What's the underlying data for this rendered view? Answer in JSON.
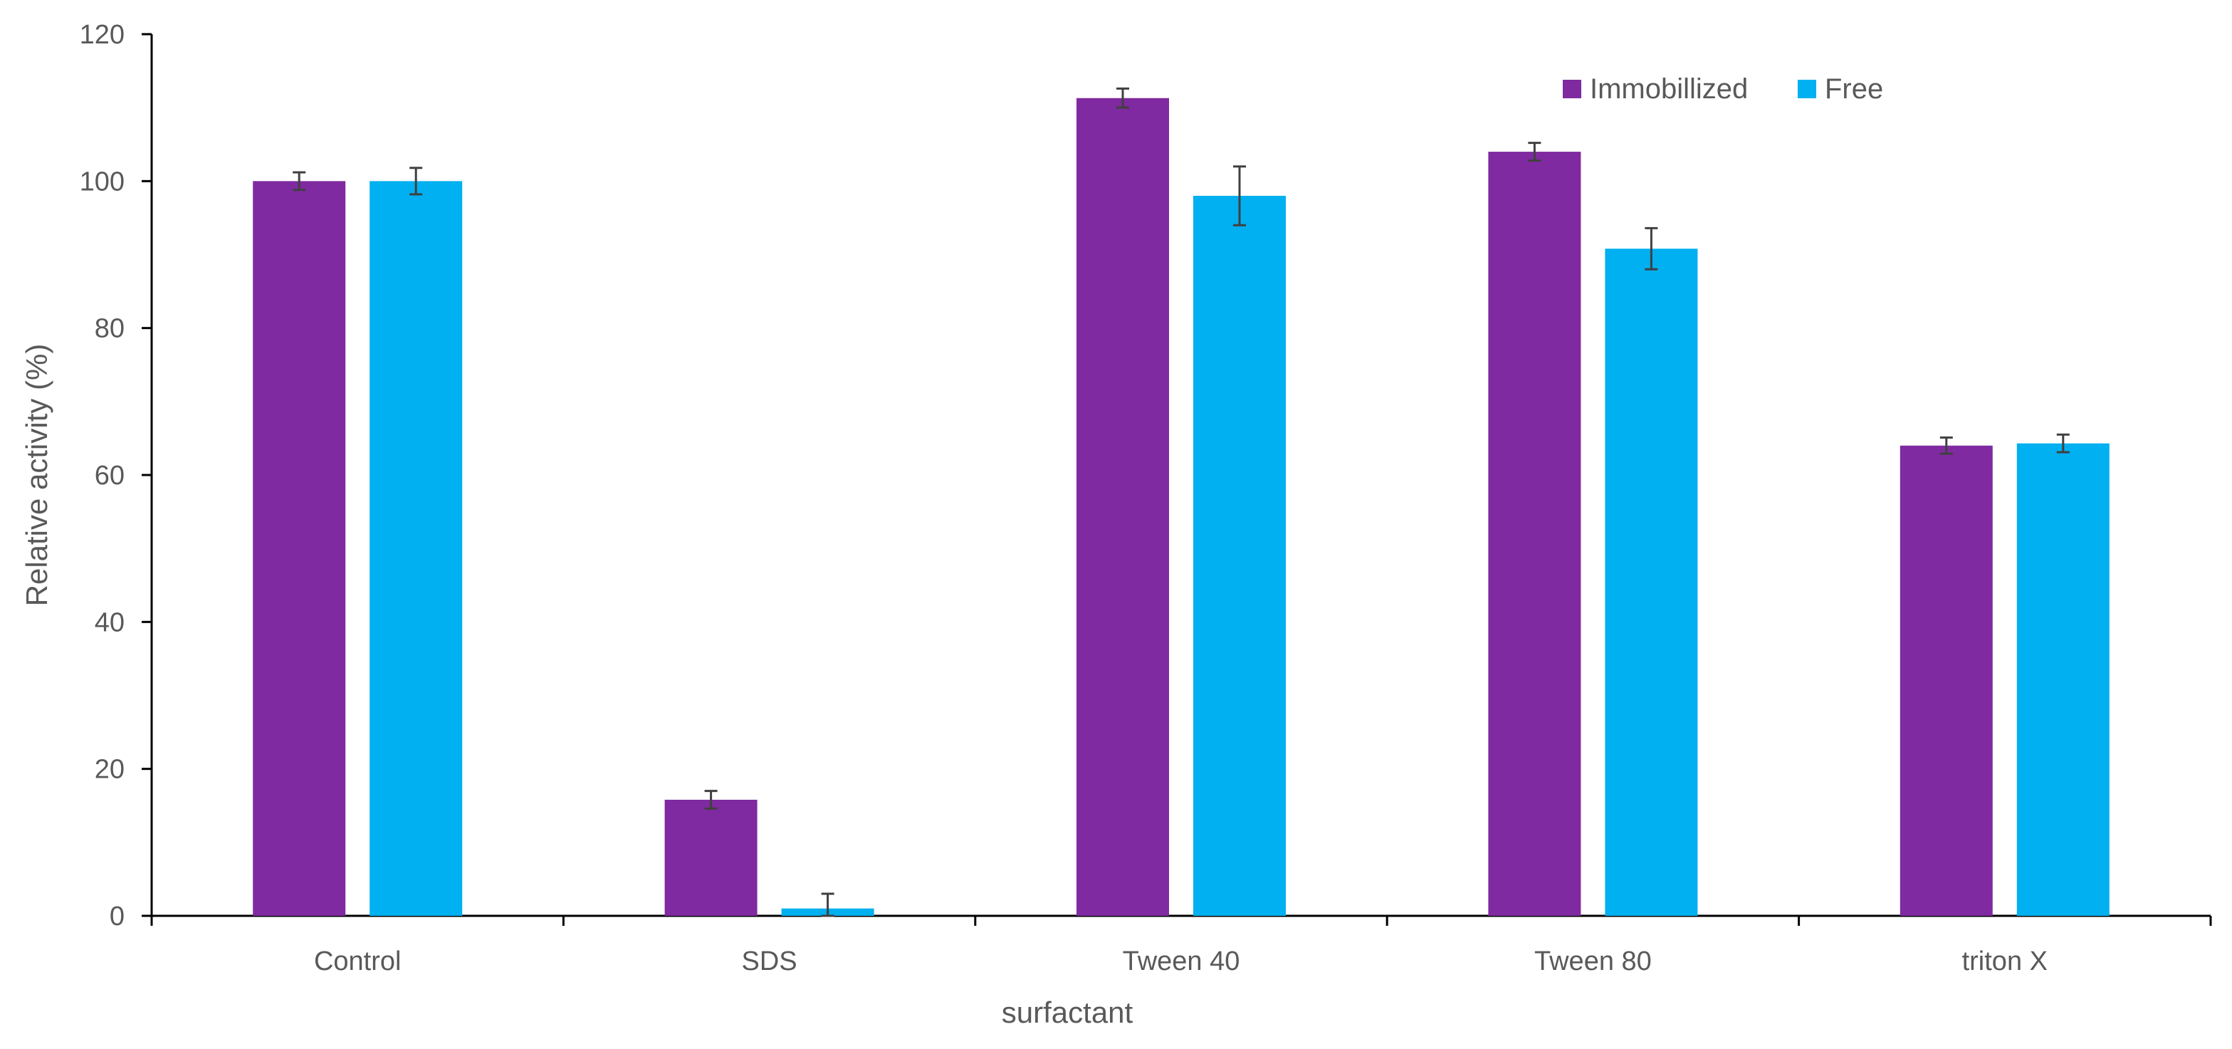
{
  "chart_data": {
    "type": "bar",
    "title": "",
    "xlabel": "surfactant",
    "ylabel": "Relative activity (%)",
    "categories": [
      "Control",
      "SDS",
      "Tween 40",
      "Tween 80",
      "triton X"
    ],
    "ylim": [
      0,
      120
    ],
    "yticks": [
      "0",
      "20",
      "40",
      "60",
      "80",
      "100",
      "120"
    ],
    "grid": false,
    "legend_position": "top-right",
    "series": [
      {
        "name": "Immobillized",
        "color": "#7f2aa0",
        "values": [
          100,
          15.8,
          111.3,
          104,
          64
        ],
        "errors": [
          1.2,
          1.2,
          1.3,
          1.2,
          1.1
        ]
      },
      {
        "name": "Free",
        "color": "#00b0f0",
        "values": [
          100,
          1,
          98,
          90.8,
          64.3
        ],
        "errors": [
          1.8,
          2.0,
          4.0,
          2.8,
          1.2
        ]
      }
    ]
  }
}
